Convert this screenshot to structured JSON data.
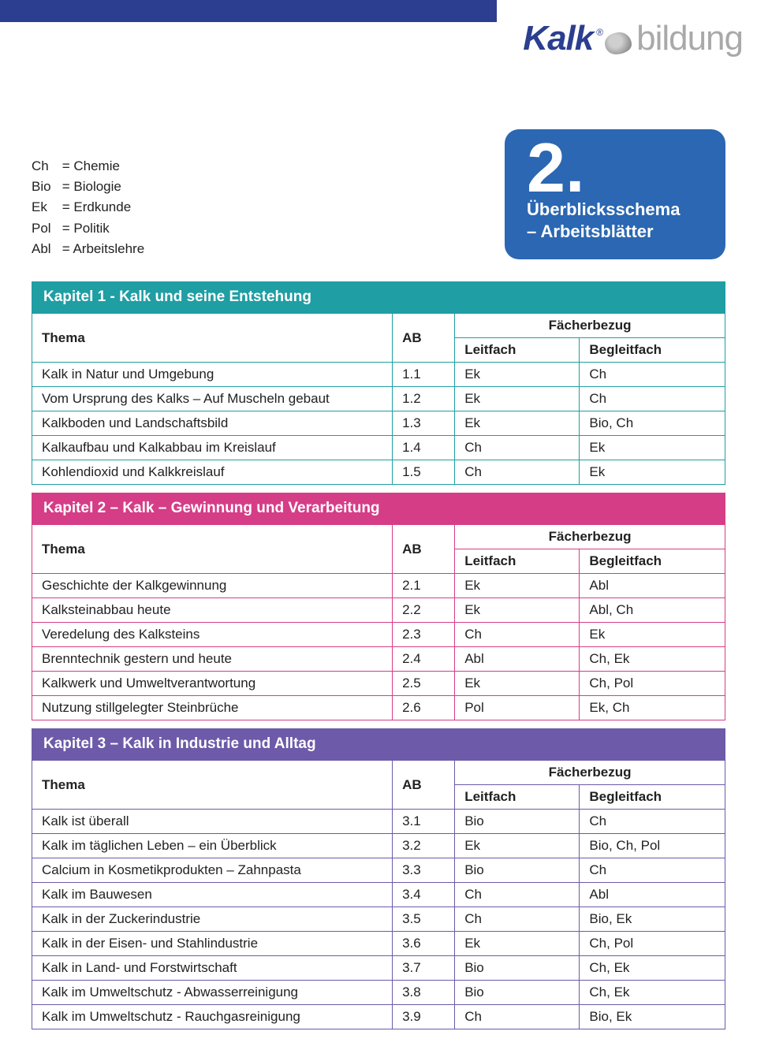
{
  "brand": {
    "part1": "Kalk",
    "reg": "®",
    "part2": "bildung"
  },
  "legend": [
    {
      "abbr": "Ch",
      "full": "Chemie"
    },
    {
      "abbr": "Bio",
      "full": "Biologie"
    },
    {
      "abbr": "Ek",
      "full": "Erdkunde"
    },
    {
      "abbr": "Pol",
      "full": "Politik"
    },
    {
      "abbr": "Abl",
      "full": "Arbeitslehre"
    }
  ],
  "badge": {
    "num": "2.",
    "line1": "Überblicksschema",
    "line2": "– Arbeitsblätter"
  },
  "headers": {
    "thema": "Thema",
    "ab": "AB",
    "fach": "Fächerbezug",
    "leit": "Leitfach",
    "begl": "Begleitfach"
  },
  "colors": {
    "ch1": "#1f9ea3",
    "ch2": "#d53d87",
    "ch3": "#6d5aa8",
    "badge": "#2b67b2",
    "topbar": "#2b3e8f"
  },
  "chapters": [
    {
      "key": "ch1",
      "title": "Kapitel 1 - Kalk und seine Entstehung",
      "rows": [
        {
          "thema": "Kalk in Natur und Umgebung",
          "ab": "1.1",
          "leit": "Ek",
          "begl": "Ch"
        },
        {
          "thema": "Vom Ursprung des Kalks – Auf Muscheln gebaut",
          "ab": "1.2",
          "leit": "Ek",
          "begl": "Ch"
        },
        {
          "thema": "Kalkboden und Landschaftsbild",
          "ab": "1.3",
          "leit": "Ek",
          "begl": "Bio, Ch"
        },
        {
          "thema": "Kalkaufbau und Kalkabbau im Kreislauf",
          "ab": "1.4",
          "leit": "Ch",
          "begl": "Ek"
        },
        {
          "thema": "Kohlendioxid und Kalkkreislauf",
          "ab": "1.5",
          "leit": "Ch",
          "begl": "Ek"
        }
      ]
    },
    {
      "key": "ch2",
      "title": "Kapitel 2 – Kalk – Gewinnung und Verarbeitung",
      "rows": [
        {
          "thema": "Geschichte der Kalkgewinnung",
          "ab": "2.1",
          "leit": "Ek",
          "begl": "Abl"
        },
        {
          "thema": "Kalksteinabbau heute",
          "ab": "2.2",
          "leit": "Ek",
          "begl": "Abl, Ch"
        },
        {
          "thema": "Veredelung des Kalksteins",
          "ab": "2.3",
          "leit": "Ch",
          "begl": "Ek"
        },
        {
          "thema": "Brenntechnik gestern und heute",
          "ab": "2.4",
          "leit": "Abl",
          "begl": "Ch, Ek"
        },
        {
          "thema": "Kalkwerk und Umweltverantwortung",
          "ab": "2.5",
          "leit": "Ek",
          "begl": "Ch, Pol"
        },
        {
          "thema": "Nutzung stillgelegter Steinbrüche",
          "ab": "2.6",
          "leit": "Pol",
          "begl": "Ek, Ch"
        }
      ]
    },
    {
      "key": "ch3",
      "title": "Kapitel 3 – Kalk in Industrie und Alltag",
      "rows": [
        {
          "thema": "Kalk ist überall",
          "ab": "3.1",
          "leit": "Bio",
          "begl": "Ch"
        },
        {
          "thema": "Kalk im täglichen Leben – ein Überblick",
          "ab": "3.2",
          "leit": "Ek",
          "begl": "Bio, Ch, Pol"
        },
        {
          "thema": "Calcium in Kosmetikprodukten – Zahnpasta",
          "ab": "3.3",
          "leit": "Bio",
          "begl": "Ch"
        },
        {
          "thema": "Kalk im Bauwesen",
          "ab": "3.4",
          "leit": "Ch",
          "begl": "Abl"
        },
        {
          "thema": "Kalk in der Zuckerindustrie",
          "ab": "3.5",
          "leit": "Ch",
          "begl": "Bio, Ek"
        },
        {
          "thema": "Kalk in der Eisen- und Stahlindustrie",
          "ab": "3.6",
          "leit": "Ek",
          "begl": "Ch, Pol"
        },
        {
          "thema": "Kalk in Land- und Forstwirtschaft",
          "ab": "3.7",
          "leit": "Bio",
          "begl": "Ch, Ek"
        },
        {
          "thema": "Kalk im Umweltschutz - Abwasserreinigung",
          "ab": "3.8",
          "leit": "Bio",
          "begl": "Ch, Ek"
        },
        {
          "thema": "Kalk im Umweltschutz - Rauchgasreinigung",
          "ab": "3.9",
          "leit": "Ch",
          "begl": "Bio, Ek"
        }
      ]
    }
  ]
}
